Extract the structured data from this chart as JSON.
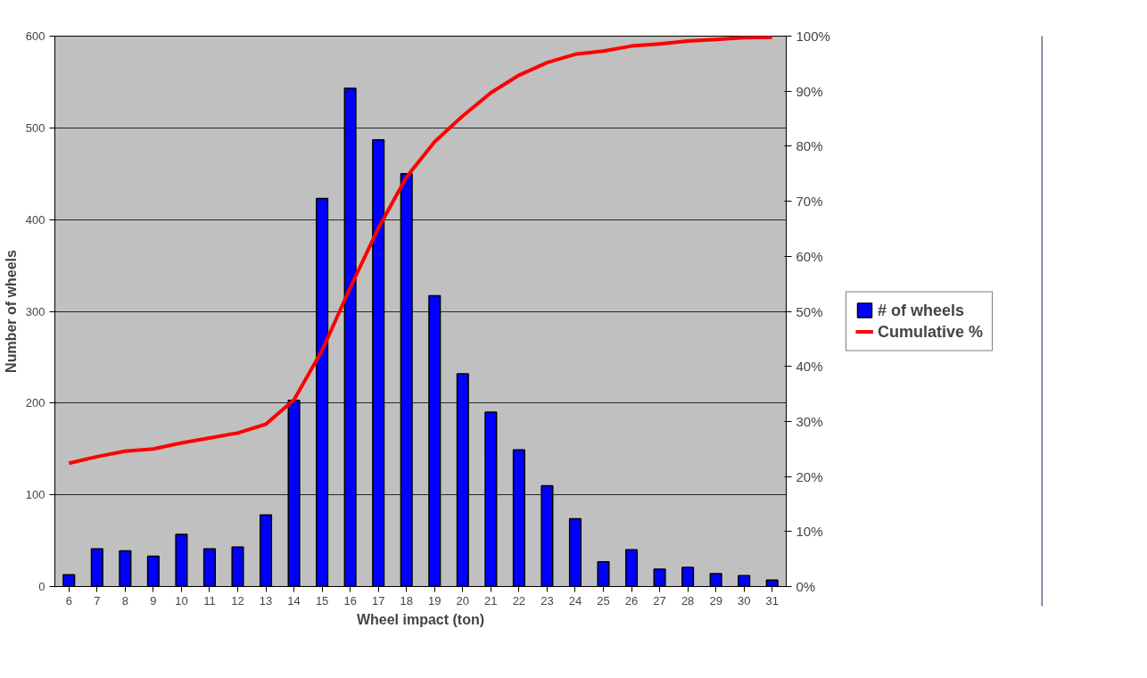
{
  "chart_data": {
    "type": "bar",
    "xlabel": "Wheel impact (ton)",
    "ylabel": "Number of wheels",
    "categories": [
      "6",
      "7",
      "8",
      "9",
      "10",
      "11",
      "12",
      "13",
      "14",
      "15",
      "16",
      "17",
      "18",
      "19",
      "20",
      "21",
      "22",
      "23",
      "24",
      "25",
      "26",
      "27",
      "28",
      "29",
      "30",
      "31"
    ],
    "series": [
      {
        "name": "# of wheels",
        "color": "#0000ff",
        "values": [
          13,
          41,
          39,
          33,
          57,
          41,
          43,
          78,
          203,
          423,
          543,
          487,
          450,
          317,
          232,
          190,
          149,
          110,
          74,
          27,
          40,
          19,
          21,
          14,
          12,
          7
        ]
      },
      {
        "name": "Cumulative %",
        "type": "line",
        "axis": "y2",
        "color": "#ff0000",
        "values": [
          22.4,
          23.6,
          24.6,
          25,
          26.1,
          27,
          27.9,
          29.5,
          33.9,
          42.9,
          54.3,
          65.1,
          74.4,
          80.8,
          85.5,
          89.7,
          92.9,
          95.2,
          96.7,
          97.3,
          98.2,
          98.6,
          99.1,
          99.4,
          99.7,
          99.8
        ]
      }
    ],
    "ylim": [
      0,
      600
    ],
    "yticks": [
      0,
      100,
      200,
      300,
      400,
      500,
      600
    ],
    "y2lim": [
      0,
      100
    ],
    "y2ticks": [
      {
        "value": 0,
        "label": "0%"
      },
      {
        "value": 10,
        "label": "10%"
      },
      {
        "value": 20,
        "label": "20%"
      },
      {
        "value": 30,
        "label": "30%"
      },
      {
        "value": 40,
        "label": "40%"
      },
      {
        "value": 50,
        "label": "50%"
      },
      {
        "value": 60,
        "label": "60%"
      },
      {
        "value": 70,
        "label": "70%"
      },
      {
        "value": 80,
        "label": "80%"
      },
      {
        "value": 90,
        "label": "90%"
      },
      {
        "value": 100,
        "label": "100%"
      }
    ],
    "grid": "y",
    "legend": "right"
  }
}
